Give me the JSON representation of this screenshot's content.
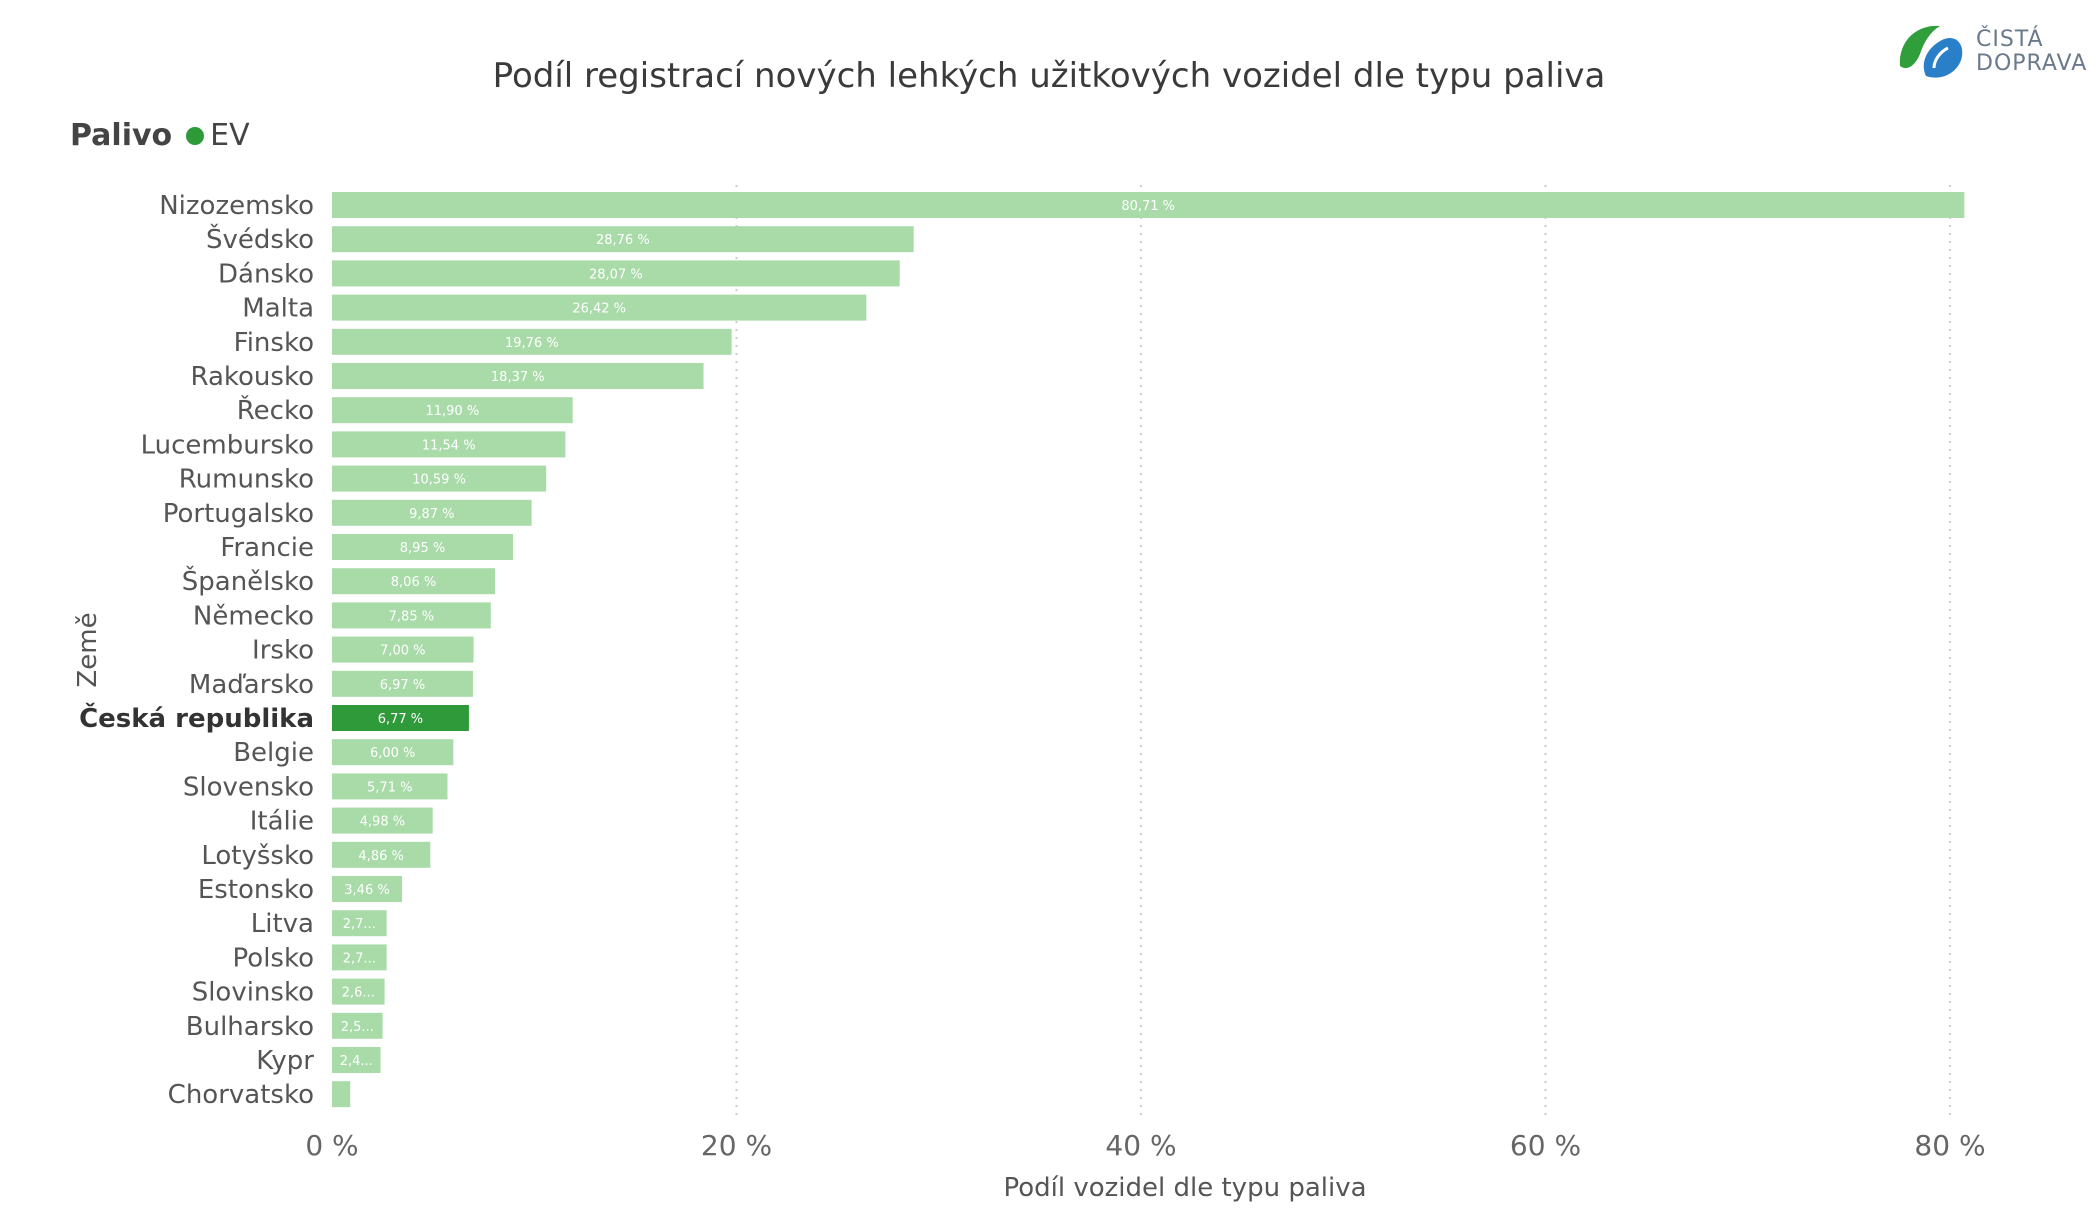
{
  "header": {
    "title": "Podíl registrací nových lehkých užitkových vozidel dle typu paliva",
    "legend_title": "Palivo",
    "legend_item": "EV",
    "logo_line1": "ČISTÁ",
    "logo_line2": "DOPRAVA"
  },
  "colors": {
    "bar": "#a9dba9",
    "bar_highlight": "#2e9a3a",
    "legend_dot": "#2e9a3a",
    "grid": "#cccccc"
  },
  "chart_data": {
    "type": "bar",
    "orientation": "horizontal",
    "title": "Podíl registrací nových lehkých užitkových vozidel dle typu paliva",
    "xlabel": "Podíl vozidel dle typu paliva",
    "ylabel": "Země",
    "xlim": [
      0,
      80
    ],
    "x_ticks": [
      0,
      20,
      40,
      60,
      80
    ],
    "x_tick_labels": [
      "0 %",
      "20 %",
      "40 %",
      "60 %",
      "80 %"
    ],
    "grid": "vertical dotted",
    "legend": {
      "title": "Palivo",
      "entries": [
        "EV"
      ],
      "placement": "top-left"
    },
    "highlight": "Česká republika",
    "categories": [
      "Nizozemsko",
      "Švédsko",
      "Dánsko",
      "Malta",
      "Finsko",
      "Rakousko",
      "Řecko",
      "Lucembursko",
      "Rumunsko",
      "Portugalsko",
      "Francie",
      "Španělsko",
      "Německo",
      "Irsko",
      "Maďarsko",
      "Česká republika",
      "Belgie",
      "Slovensko",
      "Itálie",
      "Lotyšsko",
      "Estonsko",
      "Litva",
      "Polsko",
      "Slovinsko",
      "Bulharsko",
      "Kypr",
      "Chorvatsko"
    ],
    "values": [
      80.71,
      28.76,
      28.07,
      26.42,
      19.76,
      18.37,
      11.9,
      11.54,
      10.59,
      9.87,
      8.95,
      8.06,
      7.85,
      7.0,
      6.97,
      6.77,
      6.0,
      5.71,
      4.98,
      4.86,
      3.46,
      2.7,
      2.7,
      2.6,
      2.5,
      2.4,
      0.9
    ],
    "data_labels": [
      "80,71 %",
      "28,76 %",
      "28,07 %",
      "26,42 %",
      "19,76 %",
      "18,37 %",
      "11,90 %",
      "11,54 %",
      "10,59 %",
      "9,87 %",
      "8,95 %",
      "8,06 %",
      "7,85 %",
      "7,00 %",
      "6,97 %",
      "6,77 %",
      "6,00 %",
      "5,71 %",
      "4,98 %",
      "4,86 %",
      "3,46 %",
      "2,7...",
      "2,7...",
      "2,6...",
      "2,5...",
      "2,4...",
      ""
    ]
  }
}
